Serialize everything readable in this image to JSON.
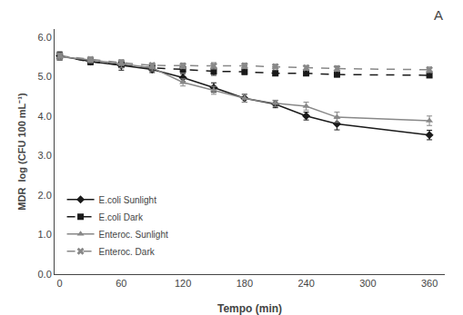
{
  "chart_data": {
    "type": "line",
    "x_label": "Tempo (min)",
    "y_label": "MDR  log (CFU 100 mL⁻¹)",
    "annotations": [
      "A"
    ],
    "x": [
      0,
      30,
      60,
      90,
      120,
      150,
      180,
      210,
      240,
      270,
      360
    ],
    "series": [
      {
        "name": "E.coli Sunlight",
        "color": "#1a1a1a",
        "marker": "diamond",
        "line_style": "solid",
        "values": [
          5.52,
          5.38,
          5.28,
          5.18,
          4.97,
          4.72,
          4.45,
          4.3,
          4.0,
          3.8,
          3.52
        ],
        "errors": [
          0.1,
          0.07,
          0.12,
          0.08,
          0.1,
          0.12,
          0.1,
          0.09,
          0.1,
          0.15,
          0.12
        ]
      },
      {
        "name": "E.coli Dark",
        "color": "#1a1a1a",
        "marker": "square",
        "line_style": "dashed",
        "values": [
          5.52,
          5.37,
          5.3,
          5.22,
          5.18,
          5.13,
          5.12,
          5.08,
          5.08,
          5.05,
          5.03
        ],
        "errors": [
          0.1,
          0.07,
          0.08,
          0.06,
          0.08,
          0.1,
          0.07,
          0.06,
          0.05,
          0.06,
          0.05
        ]
      },
      {
        "name": "Enteroc. Sunlight",
        "color": "#888888",
        "marker": "triangle",
        "line_style": "solid",
        "values": [
          5.5,
          5.42,
          5.32,
          5.22,
          4.85,
          4.65,
          4.45,
          4.32,
          4.25,
          3.97,
          3.88
        ],
        "errors": [
          0.08,
          0.07,
          0.1,
          0.08,
          0.09,
          0.1,
          0.1,
          0.08,
          0.1,
          0.13,
          0.12
        ]
      },
      {
        "name": "Enteroc. Dark",
        "color": "#888888",
        "marker": "x",
        "line_style": "dashed",
        "values": [
          5.52,
          5.43,
          5.35,
          5.28,
          5.27,
          5.27,
          5.27,
          5.25,
          5.22,
          5.2,
          5.17
        ],
        "errors": [
          0.08,
          0.06,
          0.07,
          0.06,
          0.07,
          0.08,
          0.07,
          0.06,
          0.06,
          0.07,
          0.07
        ]
      }
    ],
    "xlim": [
      -5,
      375
    ],
    "ylim": [
      0.0,
      6.2
    ],
    "xticks": [
      0,
      60,
      120,
      180,
      240,
      300,
      360
    ],
    "yticks": [
      {
        "value": 0.0,
        "label": "0.0"
      },
      {
        "value": 1.0,
        "label": "1.0"
      },
      {
        "value": 2.0,
        "label": "2.0"
      },
      {
        "value": 3.0,
        "label": "3.0"
      },
      {
        "value": 4.0,
        "label": "4.0"
      },
      {
        "value": 5.0,
        "label": "5.0"
      },
      {
        "value": 6.0,
        "label": "6.0"
      }
    ],
    "grid": false,
    "legend": "lower left"
  }
}
